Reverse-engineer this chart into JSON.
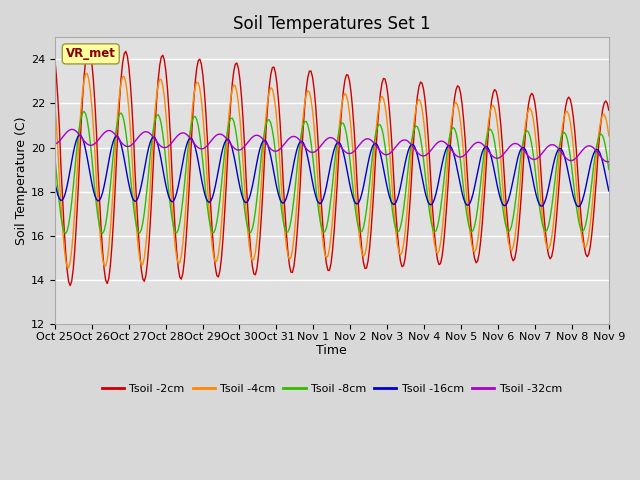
{
  "title": "Soil Temperatures Set 1",
  "xlabel": "Time",
  "ylabel": "Soil Temperature (C)",
  "ylim": [
    12,
    25
  ],
  "yticks": [
    12,
    14,
    16,
    18,
    20,
    22,
    24
  ],
  "x_labels": [
    "Oct 25",
    "Oct 26",
    "Oct 27",
    "Oct 28",
    "Oct 29",
    "Oct 30",
    "Oct 31",
    "Nov 1",
    "Nov 2",
    "Nov 3",
    "Nov 4",
    "Nov 5",
    "Nov 6",
    "Nov 7",
    "Nov 8",
    "Nov 9"
  ],
  "series_colors": [
    "#cc0000",
    "#ff8800",
    "#33bb00",
    "#0000cc",
    "#aa00cc"
  ],
  "series_labels": [
    "Tsoil -2cm",
    "Tsoil -4cm",
    "Tsoil -8cm",
    "Tsoil -16cm",
    "Tsoil -32cm"
  ],
  "annotation_text": "VR_met",
  "background_color": "#e0e0e0",
  "grid_color": "#ffffff",
  "title_fontsize": 12,
  "label_fontsize": 9,
  "tick_fontsize": 8
}
